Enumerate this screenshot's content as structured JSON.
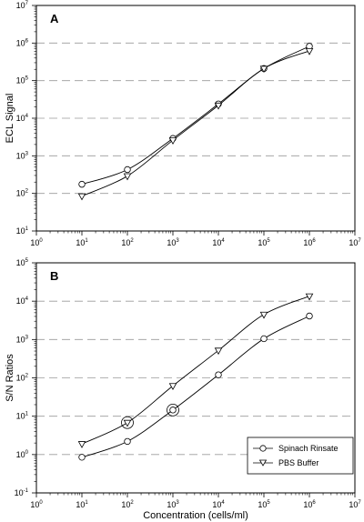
{
  "legend": {
    "entries": [
      {
        "label": "Spinach Rinsate",
        "marker": "circle"
      },
      {
        "label": "PBS Buffer",
        "marker": "triangle-down"
      }
    ]
  },
  "chart_data": [
    {
      "type": "line",
      "panel_label": "A",
      "xlabel": "",
      "ylabel": "ECL Signal",
      "x_scale": "log",
      "y_scale": "log",
      "xlim": [
        1,
        10000000
      ],
      "ylim": [
        10,
        10000000
      ],
      "x_ticks": [
        {
          "base": "10",
          "exp": "0"
        },
        {
          "base": "10",
          "exp": "1"
        },
        {
          "base": "10",
          "exp": "2"
        },
        {
          "base": "10",
          "exp": "3"
        },
        {
          "base": "10",
          "exp": "4"
        },
        {
          "base": "10",
          "exp": "5"
        },
        {
          "base": "10",
          "exp": "6"
        },
        {
          "base": "10",
          "exp": "7"
        }
      ],
      "y_ticks": [
        {
          "base": "10",
          "exp": "1"
        },
        {
          "base": "10",
          "exp": "2"
        },
        {
          "base": "10",
          "exp": "3"
        },
        {
          "base": "10",
          "exp": "4"
        },
        {
          "base": "10",
          "exp": "5"
        },
        {
          "base": "10",
          "exp": "6"
        },
        {
          "base": "10",
          "exp": "7"
        }
      ],
      "grid": "horizontal-dashed",
      "x": [
        10,
        100,
        1000,
        10000,
        100000,
        1000000
      ],
      "series": [
        {
          "name": "Spinach Rinsate",
          "marker": "circle",
          "values": [
            175,
            430,
            2900,
            24000,
            210000,
            820000
          ]
        },
        {
          "name": "PBS Buffer",
          "marker": "triangle-down",
          "values": [
            85,
            290,
            2600,
            22000,
            210000,
            620000
          ]
        }
      ],
      "legend": false
    },
    {
      "type": "line",
      "panel_label": "B",
      "xlabel": "Concentration (cells/ml)",
      "ylabel": "S/N Ratios",
      "x_scale": "log",
      "y_scale": "log",
      "xlim": [
        1,
        10000000
      ],
      "ylim": [
        0.1,
        100000
      ],
      "x_ticks": [
        {
          "base": "10",
          "exp": "0"
        },
        {
          "base": "10",
          "exp": "1"
        },
        {
          "base": "10",
          "exp": "2"
        },
        {
          "base": "10",
          "exp": "3"
        },
        {
          "base": "10",
          "exp": "4"
        },
        {
          "base": "10",
          "exp": "5"
        },
        {
          "base": "10",
          "exp": "6"
        },
        {
          "base": "10",
          "exp": "7"
        }
      ],
      "y_ticks": [
        {
          "base": "10",
          "exp": "-1"
        },
        {
          "base": "10",
          "exp": "0"
        },
        {
          "base": "10",
          "exp": "1"
        },
        {
          "base": "10",
          "exp": "2"
        },
        {
          "base": "10",
          "exp": "3"
        },
        {
          "base": "10",
          "exp": "4"
        },
        {
          "base": "10",
          "exp": "5"
        }
      ],
      "grid": "horizontal-dashed",
      "x": [
        10,
        100,
        1000,
        10000,
        100000,
        1000000
      ],
      "series": [
        {
          "name": "Spinach Rinsate",
          "marker": "circle",
          "values": [
            0.85,
            2.2,
            14.5,
            120,
            1050,
            4100
          ]
        },
        {
          "name": "PBS Buffer",
          "marker": "triangle-down",
          "values": [
            1.9,
            6.8,
            62,
            520,
            4500,
            13500
          ]
        }
      ],
      "highlighted_points": [
        {
          "series": "PBS Buffer",
          "x": 100,
          "y": 6.8
        },
        {
          "series": "Spinach Rinsate",
          "x": 1000,
          "y": 14.5
        }
      ],
      "legend": true,
      "legend_position": "bottom-right"
    }
  ]
}
